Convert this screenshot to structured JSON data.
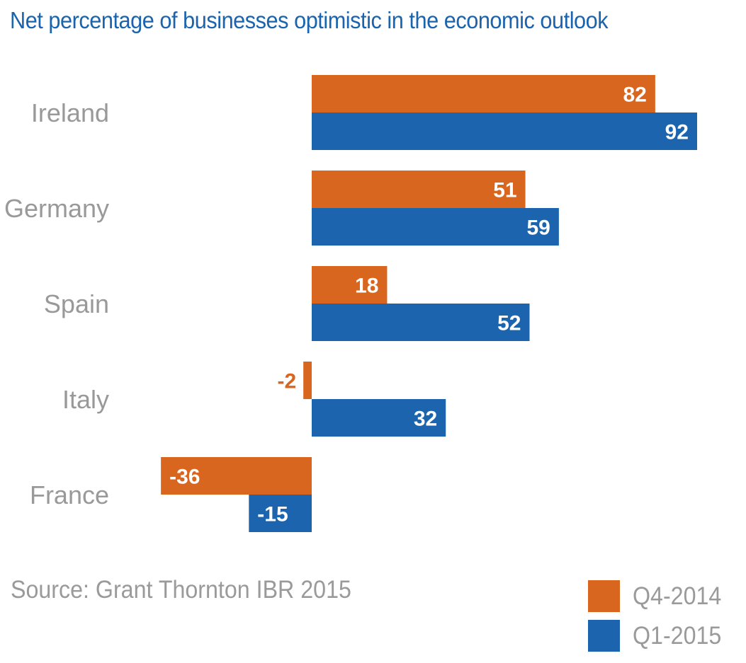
{
  "chart_data": {
    "type": "bar",
    "orientation": "horizontal",
    "title": "Net percentage of businesses optimistic in the economic outlook",
    "categories": [
      "Ireland",
      "Germany",
      "Spain",
      "Italy",
      "France"
    ],
    "series": [
      {
        "name": "Q4-2014",
        "color": "#d9661f",
        "values": [
          82,
          51,
          18,
          -2,
          -36
        ]
      },
      {
        "name": "Q1-2015",
        "color": "#1c64ad",
        "values": [
          92,
          59,
          52,
          32,
          -15
        ]
      }
    ],
    "xlim": [
      -40,
      100
    ],
    "grid": false,
    "data_labels": true,
    "legend_placement": "bottom-right",
    "source": "Source: Grant Thornton IBR 2015"
  }
}
